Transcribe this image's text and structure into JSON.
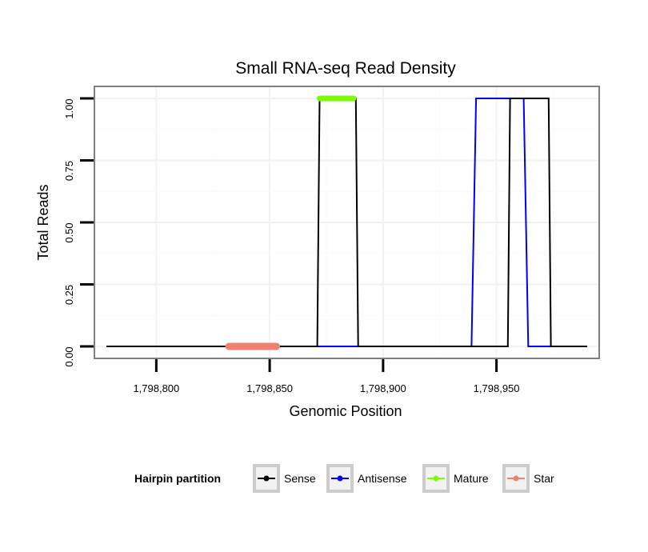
{
  "chart_data": {
    "type": "line",
    "title": "Small RNA-seq Read Density",
    "xlabel": "Genomic Position",
    "ylabel": "Total Reads",
    "xlim": [
      1798778,
      1798990
    ],
    "ylim": [
      0,
      1
    ],
    "x_ticks": [
      1798800,
      1798850,
      1798900,
      1798950
    ],
    "x_tick_labels": [
      "1,798,800",
      "1,798,850",
      "1,798,900",
      "1,798,950"
    ],
    "y_ticks": [
      0,
      0.25,
      0.5,
      0.75,
      1.0
    ],
    "y_tick_labels": [
      "0.00",
      "0.25",
      "0.50",
      "0.75",
      "1.00"
    ],
    "grid": true,
    "legend": {
      "title": "Hairpin partition",
      "placement": "bottom",
      "entries": [
        "Sense",
        "Antisense",
        "Mature",
        "Star"
      ]
    },
    "series": [
      {
        "name": "Antisense",
        "color": "#0000ff",
        "x": [
          1798778,
          1798885,
          1798888,
          1798939,
          1798941,
          1798962,
          1798964,
          1798990
        ],
        "y": [
          0,
          0,
          0,
          0,
          1,
          1,
          0,
          0
        ]
      },
      {
        "name": "Sense",
        "color": "#000000",
        "x": [
          1798778,
          1798871,
          1798872,
          1798888,
          1798889,
          1798955,
          1798956,
          1798973,
          1798974,
          1798990
        ],
        "y": [
          0,
          0,
          1,
          1,
          0,
          0,
          1,
          1,
          0,
          0
        ]
      },
      {
        "name": "Mature",
        "color": "#7cfc00",
        "x": [
          1798872,
          1798887
        ],
        "y": [
          1,
          1
        ]
      },
      {
        "name": "Star",
        "color": "#f08070",
        "x": [
          1798832,
          1798853
        ],
        "y": [
          0,
          0
        ]
      }
    ]
  }
}
